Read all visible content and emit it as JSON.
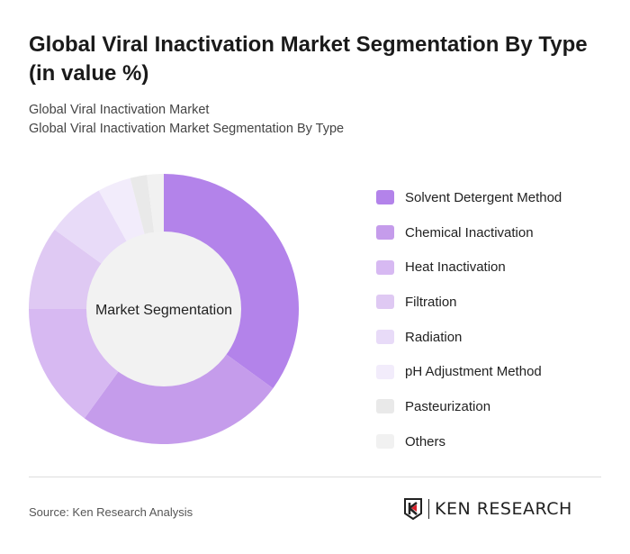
{
  "title": "Global Viral Inactivation Market Segmentation By Type (in value %)",
  "breadcrumb": [
    "Global Viral Inactivation Market",
    "Global Viral Inactivation Market Segmentation By Type"
  ],
  "source": "Source: Ken Research Analysis",
  "logo_text": "KEN RESEARCH",
  "chart_data": {
    "type": "pie",
    "donut": true,
    "center_label": "Market Segmentation",
    "legend_position": "right",
    "categories": [
      "Solvent Detergent Method",
      "Chemical Inactivation",
      "Heat Inactivation",
      "Filtration",
      "Radiation",
      "pH Adjustment Method",
      "Pasteurization",
      "Others"
    ],
    "values": [
      35,
      25,
      15,
      10,
      7,
      4,
      2,
      2
    ],
    "colors": [
      "#b383ea",
      "#c59ceb",
      "#d7b9f2",
      "#dfc9f3",
      "#e8dbf8",
      "#f2ecfb",
      "#e9e9e9",
      "#f1f1f1"
    ]
  }
}
